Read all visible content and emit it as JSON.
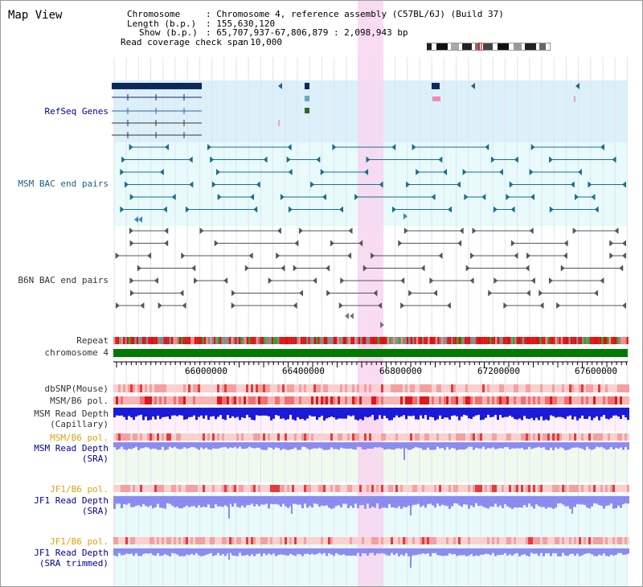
{
  "header": {
    "title": "Map View",
    "chromosome_label": "Chromosome",
    "chromosome_value": ": Chromosome 4, reference assembly (C57BL/6J) (Build 37)",
    "length_label": "Length (b.p.)",
    "length_value": ": 155,630,120",
    "show_label": "Show (b.p.)",
    "show_value": ": 65,707,937-67,806,879 : 2,098,943 bp",
    "coverage_label": "Read coverage check span",
    "coverage_value": ": 10,000"
  },
  "tracks": {
    "refseq": "RefSeq Genes",
    "msm_bac": "MSM BAC end pairs",
    "b6n_bac": "B6N BAC end pairs",
    "repeat": "Repeat",
    "chromosome": "chromosome 4",
    "dbsnp": "dbSNP(Mouse)",
    "msm_b6_pol_1": "MSM/B6 pol.",
    "msm_read_depth_cap_1": "MSM Read Depth",
    "msm_read_depth_cap_2": "(Capillary)",
    "msm_b6_pol_2": "MSM/B6 pol.",
    "msm_read_depth_sra_1": "MSM Read Depth",
    "msm_read_depth_sra_2": "(SRA)",
    "jf1_b6_pol_1": "JF1/B6 pol.",
    "jf1_read_depth_sra_1": "JF1 Read Depth",
    "jf1_read_depth_sra_2": "(SRA)",
    "jf1_b6_pol_2": "JF1/B6 pol.",
    "jf1_read_depth_trim_1": "JF1 Read Depth",
    "jf1_read_depth_trim_2": "(SRA trimmed)"
  },
  "axis": {
    "ticks": [
      "66000000",
      "66400000",
      "66800000",
      "67200000",
      "67600000"
    ]
  },
  "colors": {
    "refseq_bg": "#dcf0fa",
    "bac_bg": "#e8fafa",
    "highlight": "#f8d6f0",
    "chromosome_bar": "#007a00",
    "gene_dark": "#0b2a5a",
    "read_depth_dark": "#1a1ad8",
    "read_depth_light": "#8c8cf0"
  }
}
